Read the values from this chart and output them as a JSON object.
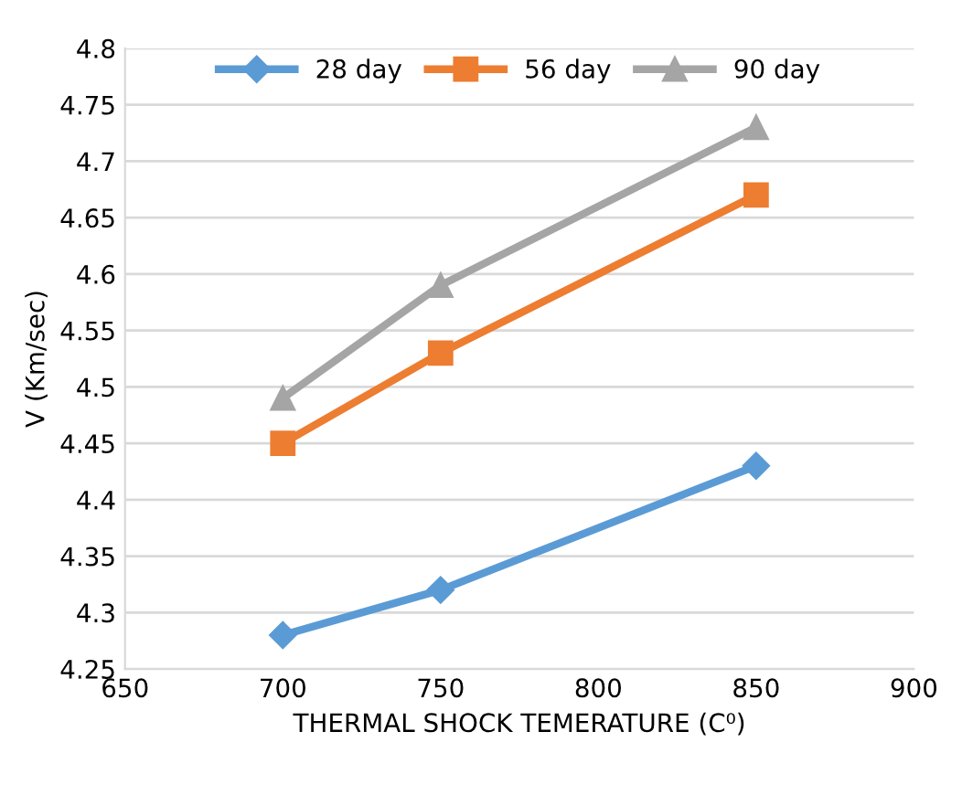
{
  "chart_data": {
    "type": "line",
    "xlabel": "THERMAL SHOCK TEMERATURE (C⁰)",
    "ylabel": "V (Km/sec)",
    "x": [
      700,
      750,
      850
    ],
    "series": [
      {
        "name": "28 day",
        "color": "#5b9bd5",
        "marker": "diamond",
        "values": [
          4.28,
          4.32,
          4.43
        ]
      },
      {
        "name": "56 day",
        "color": "#ed7d31",
        "marker": "square",
        "values": [
          4.45,
          4.53,
          4.67
        ]
      },
      {
        "name": "90 day",
        "color": "#a5a5a5",
        "marker": "triangle",
        "values": [
          4.49,
          4.59,
          4.73
        ]
      }
    ],
    "xlim": [
      650,
      900
    ],
    "xticks": [
      650,
      700,
      750,
      800,
      850,
      900
    ],
    "ylim": [
      4.25,
      4.8
    ],
    "yticks": [
      4.25,
      4.3,
      4.35,
      4.4,
      4.45,
      4.5,
      4.55,
      4.6,
      4.65,
      4.7,
      4.75,
      4.8
    ],
    "grid": "y",
    "legend": "top",
    "line_style": "solid"
  }
}
